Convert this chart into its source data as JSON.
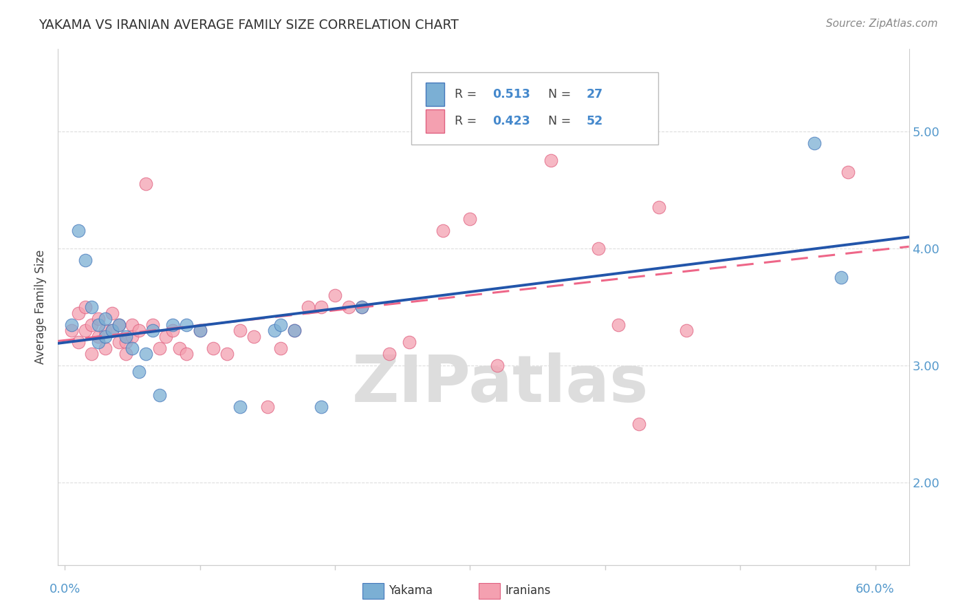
{
  "title": "YAKAMA VS IRANIAN AVERAGE FAMILY SIZE CORRELATION CHART",
  "source_text": "Source: ZipAtlas.com",
  "ylabel": "Average Family Size",
  "ylim": [
    1.3,
    5.7
  ],
  "xlim": [
    -0.005,
    0.625
  ],
  "yticks": [
    2.0,
    3.0,
    4.0,
    5.0
  ],
  "blue_color": "#7BAFD4",
  "pink_color": "#F4A0B0",
  "blue_edge_color": "#4477BB",
  "pink_edge_color": "#E06080",
  "blue_line_color": "#2255AA",
  "pink_line_color": "#EE6688",
  "watermark": "ZIPatlas",
  "watermark_color": "#DDDDDD",
  "title_color": "#333333",
  "source_color": "#888888",
  "tick_color": "#5599CC",
  "grid_color": "#DDDDDD",
  "spine_color": "#CCCCCC",
  "legend_r1": "R = ",
  "legend_v1": "0.513",
  "legend_n1": "N = ",
  "legend_nv1": "27",
  "legend_r2": "R = ",
  "legend_v2": "0.423",
  "legend_n2": "N = ",
  "legend_nv2": "52",
  "legend_color_val": "#4488CC",
  "legend_color_label": "#444444",
  "yakama_x": [
    0.005,
    0.01,
    0.015,
    0.02,
    0.025,
    0.025,
    0.03,
    0.03,
    0.035,
    0.04,
    0.045,
    0.05,
    0.055,
    0.06,
    0.065,
    0.07,
    0.08,
    0.09,
    0.1,
    0.13,
    0.155,
    0.16,
    0.17,
    0.19,
    0.22,
    0.555,
    0.575
  ],
  "yakama_y": [
    3.35,
    4.15,
    3.9,
    3.5,
    3.35,
    3.2,
    3.4,
    3.25,
    3.3,
    3.35,
    3.25,
    3.15,
    2.95,
    3.1,
    3.3,
    2.75,
    3.35,
    3.35,
    3.3,
    2.65,
    3.3,
    3.35,
    3.3,
    2.65,
    3.5,
    4.9,
    3.75
  ],
  "iranian_x": [
    0.005,
    0.01,
    0.01,
    0.015,
    0.015,
    0.02,
    0.02,
    0.025,
    0.025,
    0.03,
    0.03,
    0.035,
    0.035,
    0.04,
    0.04,
    0.045,
    0.045,
    0.05,
    0.05,
    0.055,
    0.06,
    0.065,
    0.07,
    0.075,
    0.08,
    0.085,
    0.09,
    0.1,
    0.11,
    0.12,
    0.13,
    0.14,
    0.15,
    0.16,
    0.17,
    0.18,
    0.19,
    0.2,
    0.21,
    0.22,
    0.24,
    0.255,
    0.28,
    0.3,
    0.32,
    0.36,
    0.395,
    0.41,
    0.425,
    0.44,
    0.46,
    0.58
  ],
  "iranian_y": [
    3.3,
    3.45,
    3.2,
    3.5,
    3.3,
    3.35,
    3.1,
    3.4,
    3.25,
    3.3,
    3.15,
    3.45,
    3.3,
    3.2,
    3.35,
    3.2,
    3.1,
    3.35,
    3.25,
    3.3,
    4.55,
    3.35,
    3.15,
    3.25,
    3.3,
    3.15,
    3.1,
    3.3,
    3.15,
    3.1,
    3.3,
    3.25,
    2.65,
    3.15,
    3.3,
    3.5,
    3.5,
    3.6,
    3.5,
    3.5,
    3.1,
    3.2,
    4.15,
    4.25,
    3.0,
    4.75,
    4.0,
    3.35,
    2.5,
    4.35,
    3.3,
    4.65
  ]
}
